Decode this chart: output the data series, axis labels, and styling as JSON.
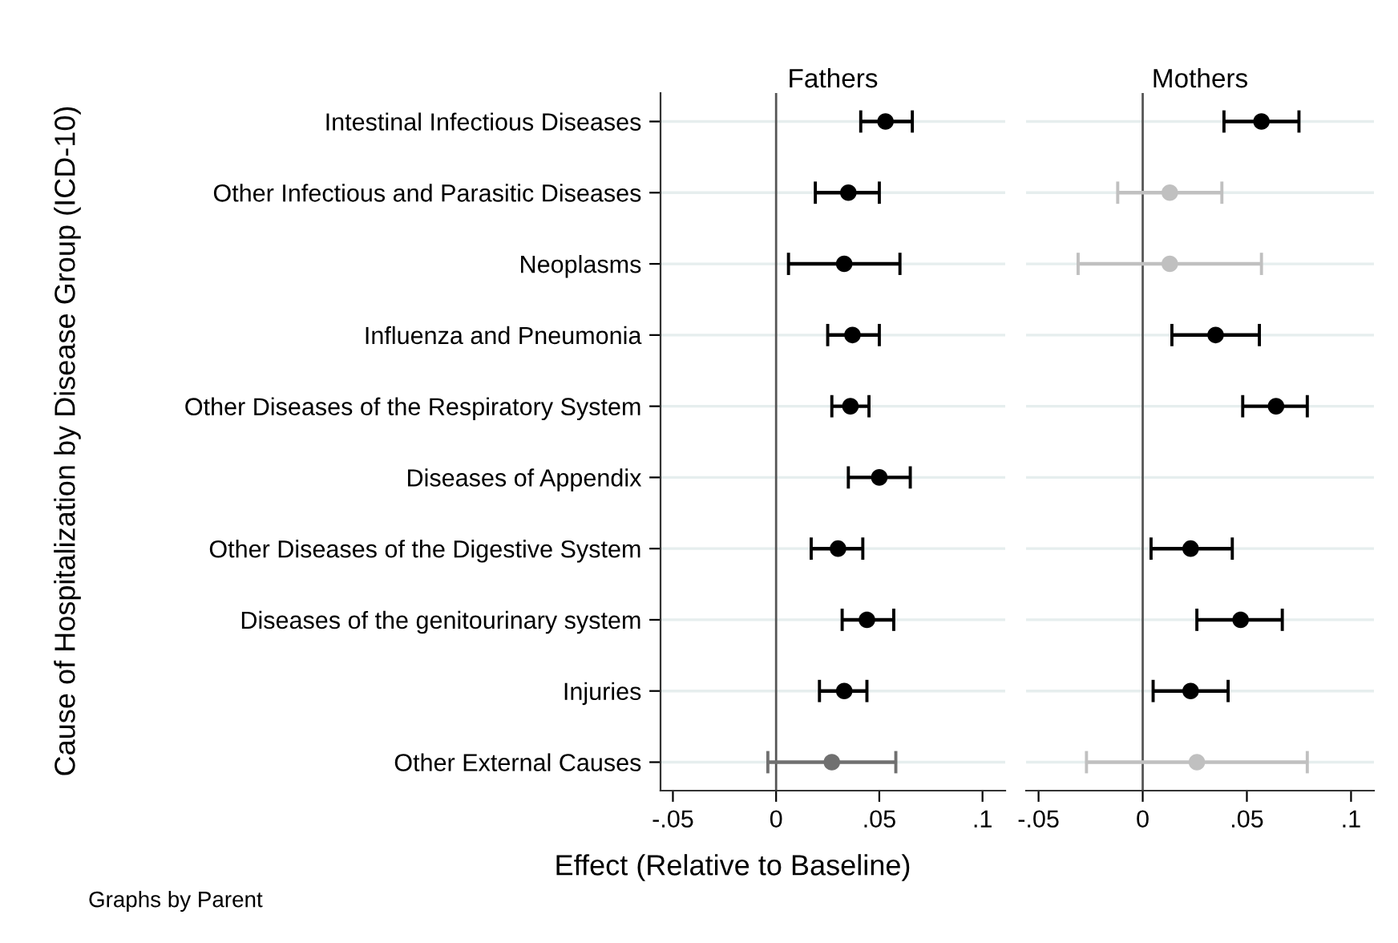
{
  "chart_data": [
    {
      "type": "scatter",
      "orientation": "horizontal",
      "title": "Fathers",
      "ylabel": "Cause of Hospitalization by Disease Group (ICD-10)",
      "xlabel": "Effect (Relative to Baseline)",
      "categories": [
        "Intestinal Infectious Diseases",
        "Other Infectious and Parasitic Diseases",
        "Neoplasms",
        "Influenza and Pneumonia",
        "Other Diseases of the Respiratory System",
        "Diseases of Appendix",
        "Other Diseases of the Digestive System",
        "Diseases of the genitourinary system",
        "Injuries",
        "Other External Causes"
      ],
      "values": [
        0.053,
        0.035,
        0.033,
        0.037,
        0.036,
        0.05,
        0.03,
        0.044,
        0.033,
        0.027
      ],
      "errors": [
        [
          0.041,
          0.066
        ],
        [
          0.019,
          0.05
        ],
        [
          0.006,
          0.06
        ],
        [
          0.025,
          0.05
        ],
        [
          0.027,
          0.045
        ],
        [
          0.035,
          0.065
        ],
        [
          0.017,
          0.042
        ],
        [
          0.032,
          0.057
        ],
        [
          0.021,
          0.044
        ],
        [
          -0.004,
          0.058
        ]
      ],
      "colors": [
        "#000000",
        "#000000",
        "#000000",
        "#000000",
        "#000000",
        "#000000",
        "#000000",
        "#000000",
        "#000000",
        "#707070"
      ],
      "marker": "circle",
      "xlim": [
        -0.056,
        0.111
      ],
      "xticks": [
        {
          "value": -0.05,
          "label": "-.05"
        },
        0,
        {
          "value": 0.05,
          "label": ".05"
        },
        {
          "value": 0.1,
          "label": ".1"
        }
      ],
      "grid": "y",
      "ref_lines": [
        {
          "axis": "x",
          "value": 0,
          "color": "#555555"
        }
      ],
      "annotations": [
        "Graphs by Parent"
      ]
    },
    {
      "type": "scatter",
      "orientation": "horizontal",
      "title": "Mothers",
      "tick_labels": "x",
      "categories": [
        null,
        null,
        null,
        null,
        null,
        null,
        null,
        null,
        null,
        null
      ],
      "values": [
        0.057,
        0.013,
        0.013,
        0.035,
        0.064,
        null,
        0.023,
        0.047,
        0.023,
        0.026
      ],
      "errors": [
        [
          0.039,
          0.075
        ],
        [
          -0.012,
          0.038
        ],
        [
          -0.031,
          0.057
        ],
        [
          0.014,
          0.056
        ],
        [
          0.048,
          0.079
        ],
        null,
        [
          0.004,
          0.043
        ],
        [
          0.026,
          0.067
        ],
        [
          0.005,
          0.041
        ],
        [
          -0.027,
          0.079
        ]
      ],
      "colors": [
        "#000000",
        "#c0c0c0",
        "#c0c0c0",
        "#000000",
        "#000000",
        "#000000",
        "#000000",
        "#000000",
        "#000000",
        "#c0c0c0"
      ],
      "marker": "circle",
      "xlim": [
        -0.056,
        0.111
      ],
      "xticks": [
        {
          "value": -0.05,
          "label": "-.05"
        },
        0,
        {
          "value": 0.05,
          "label": ".05"
        },
        {
          "value": 0.1,
          "label": ".1"
        }
      ],
      "grid": "y",
      "ref_lines": [
        {
          "axis": "x",
          "value": 0,
          "color": "#555555"
        }
      ]
    }
  ]
}
